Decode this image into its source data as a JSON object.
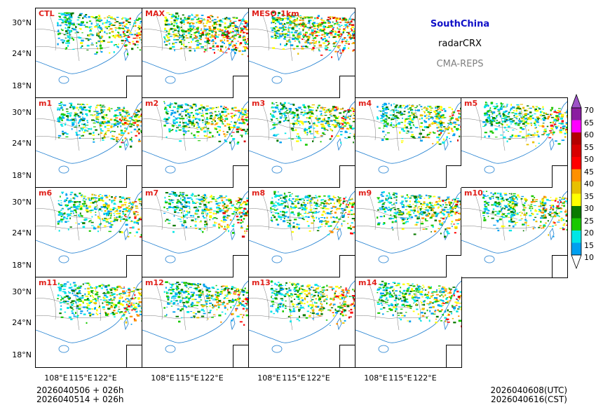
{
  "header": {
    "region": "SouthChina",
    "product": "radarCRX",
    "system": "CMA-REPS"
  },
  "panels": [
    {
      "label": "CTL"
    },
    {
      "label": "MAX"
    },
    {
      "label": "MESO_1km"
    },
    {
      "label": "m1"
    },
    {
      "label": "m2"
    },
    {
      "label": "m3"
    },
    {
      "label": "m4"
    },
    {
      "label": "m5"
    },
    {
      "label": "m6"
    },
    {
      "label": "m7"
    },
    {
      "label": "m8"
    },
    {
      "label": "m9"
    },
    {
      "label": "m10"
    },
    {
      "label": "m11"
    },
    {
      "label": "m12"
    },
    {
      "label": "m13"
    },
    {
      "label": "m14"
    }
  ],
  "axes": {
    "lat_ticks": [
      "30°N",
      "24°N",
      "18°N"
    ],
    "lon_ticks": [
      "108°E",
      "115°E",
      "122°E"
    ]
  },
  "colorbar": {
    "ticks": [
      "70",
      "65",
      "60",
      "55",
      "50",
      "45",
      "40",
      "35",
      "30",
      "25",
      "20",
      "15",
      "10"
    ],
    "colors": [
      "#9d52c8",
      "#8a1ea0",
      "#ff00ff",
      "#b40000",
      "#d80000",
      "#ff0000",
      "#ff9000",
      "#e8c000",
      "#ffff00",
      "#0a7a00",
      "#19c800",
      "#00e6e6",
      "#00a0f0",
      "#ffffff"
    ]
  },
  "footer": {
    "init_utc": "2026040506  +  026h",
    "init_cst": "2026040514  +  026h",
    "valid_utc": "2026040608(UTC)",
    "valid_cst": "2026040616(CST)"
  }
}
